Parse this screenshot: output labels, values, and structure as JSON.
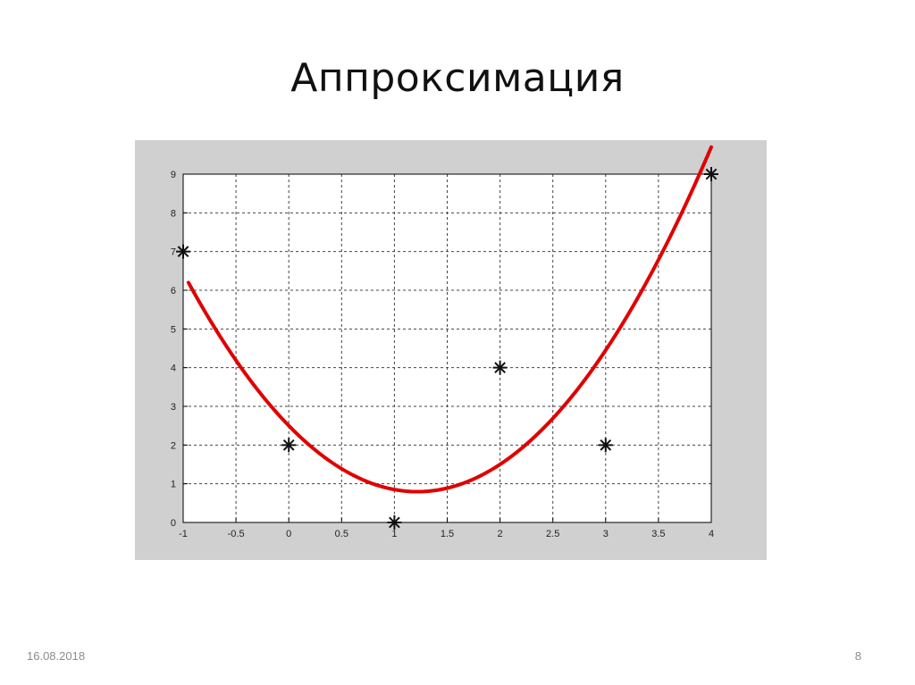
{
  "slide": {
    "title": "Аппроксимация",
    "date": "16.08.2018",
    "page_number": "8"
  },
  "colors": {
    "panel": "#d0d0d0",
    "plot_background": "#ffffff",
    "grid": "#444444",
    "curve": "#e00000",
    "points": "#111111"
  },
  "chart_data": {
    "type": "scatter",
    "title": "",
    "xlabel": "",
    "ylabel": "",
    "xlim": [
      -1,
      4
    ],
    "ylim": [
      0,
      9
    ],
    "grid": true,
    "x_ticks": [
      "-1",
      "-0.5",
      "0",
      "0.5",
      "1",
      "1.5",
      "2",
      "2.5",
      "3",
      "3.5",
      "4"
    ],
    "y_ticks": [
      "0",
      "1",
      "2",
      "3",
      "4",
      "5",
      "6",
      "7",
      "8",
      "9"
    ],
    "series": [
      {
        "kind": "points",
        "marker": "asterisk",
        "x": [
          -1,
          0,
          1,
          2,
          3,
          4
        ],
        "y": [
          7,
          2,
          0,
          4,
          2,
          9
        ]
      },
      {
        "kind": "curve",
        "style": "line",
        "x_range": [
          -0.95,
          4.0
        ],
        "poly_coefficients": [
          2.5,
          -2.8,
          1.15
        ]
      }
    ]
  }
}
